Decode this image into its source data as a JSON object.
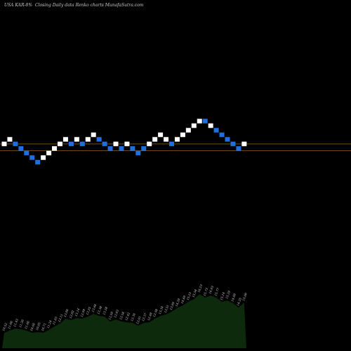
{
  "header": {
    "symbol": "USA KAR-8%",
    "chart_title": "Closing Daily data  Renko  charts MunafaSutra.com"
  },
  "colors": {
    "background": "#000000",
    "up_brick": "#ffffff",
    "down_brick": "#1e6fe0",
    "price_line": "#a06a28",
    "volume_area": "#0d2a0d"
  },
  "chart_data": {
    "type": "renko",
    "title": "Closing Daily data Renko charts",
    "renko": {
      "levels": [
        13,
        14,
        13,
        12,
        11,
        10,
        9,
        10,
        11,
        12,
        13,
        14,
        13,
        14,
        13,
        14,
        15,
        14,
        13,
        12,
        13,
        12,
        13,
        12,
        11,
        12,
        13,
        14,
        15,
        14,
        13,
        14,
        15,
        16,
        17,
        18,
        18,
        17,
        16,
        15,
        14,
        13,
        12,
        13
      ],
      "colors": [
        "up",
        "up",
        "down",
        "down",
        "down",
        "down",
        "down",
        "up",
        "up",
        "up",
        "up",
        "up",
        "down",
        "up",
        "down",
        "up",
        "up",
        "down",
        "down",
        "down",
        "up",
        "down",
        "up",
        "down",
        "down",
        "down",
        "up",
        "up",
        "up",
        "up",
        "down",
        "up",
        "up",
        "up",
        "up",
        "up",
        "down",
        "up",
        "down",
        "down",
        "down",
        "down",
        "down",
        "up"
      ]
    },
    "reference_lines": [
      13,
      11.5
    ],
    "volume": {
      "labels": [
        "10.52",
        "11.06",
        "11.43",
        "11.26",
        "11.06",
        "10.66",
        "10.85",
        "10.71",
        "11.24",
        "11.83",
        "12.11",
        "13.06",
        "12.82",
        "13.14",
        "12.99",
        "13.25",
        "13.66",
        "13.38",
        "13.28",
        "12.59",
        "12.83",
        "12.58",
        "12.42",
        "12.36",
        "12.01",
        "12.37",
        "12.48",
        "12.98",
        "13.34",
        "13.51",
        "13.89",
        "14.29",
        "14.69",
        "15.23",
        "15.58",
        "16.23",
        "15.73",
        "16.03",
        "15.77",
        "15.14",
        "15.29",
        "14.89",
        "14.25",
        "15.00"
      ],
      "heights": [
        0.22,
        0.25,
        0.28,
        0.27,
        0.25,
        0.22,
        0.23,
        0.22,
        0.26,
        0.31,
        0.35,
        0.42,
        0.4,
        0.43,
        0.42,
        0.45,
        0.49,
        0.46,
        0.45,
        0.38,
        0.41,
        0.38,
        0.37,
        0.36,
        0.32,
        0.36,
        0.37,
        0.42,
        0.46,
        0.48,
        0.52,
        0.57,
        0.61,
        0.66,
        0.7,
        0.77,
        0.72,
        0.75,
        0.72,
        0.66,
        0.68,
        0.64,
        0.58,
        0.65
      ]
    }
  }
}
